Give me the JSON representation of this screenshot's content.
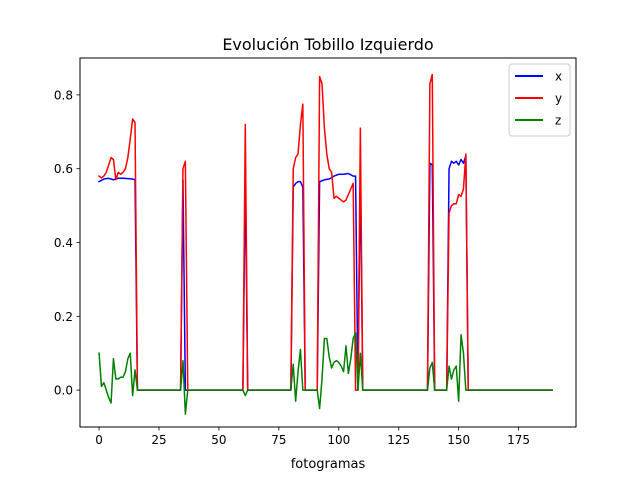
{
  "chart_data": {
    "type": "line",
    "title": "Evolución Tobillo Izquierdo",
    "xlabel": "fotogramas",
    "ylabel": "",
    "xlim": [
      -7.95,
      198.95
    ],
    "ylim": [
      -0.1,
      0.9
    ],
    "xticks": [
      0,
      25,
      50,
      75,
      100,
      125,
      150,
      175
    ],
    "yticks": [
      0.0,
      0.2,
      0.4,
      0.6,
      0.8
    ],
    "ytick_labels": [
      "0.0",
      "0.2",
      "0.4",
      "0.6",
      "0.8"
    ],
    "grid": false,
    "legend": {
      "position": "top-right",
      "entries": [
        "x",
        "y",
        "z"
      ]
    },
    "series": [
      {
        "name": "x",
        "color": "#0000ff",
        "points": [
          [
            0,
            0.565
          ],
          [
            2,
            0.572
          ],
          [
            4,
            0.574
          ],
          [
            6,
            0.57
          ],
          [
            8,
            0.574
          ],
          [
            10,
            0.574
          ],
          [
            12,
            0.573
          ],
          [
            14,
            0.572
          ],
          [
            15,
            0.57
          ],
          [
            16,
            0.0
          ],
          [
            34,
            0.0
          ],
          [
            35,
            0.57
          ],
          [
            36,
            0.0
          ],
          [
            60,
            0.0
          ],
          [
            61,
            0.58
          ],
          [
            62,
            0.0
          ],
          [
            80,
            0.0
          ],
          [
            81,
            0.55
          ],
          [
            82,
            0.56
          ],
          [
            83,
            0.565
          ],
          [
            84,
            0.565
          ],
          [
            85,
            0.55
          ],
          [
            86,
            0.0
          ],
          [
            91,
            0.0
          ],
          [
            92,
            0.565
          ],
          [
            94,
            0.57
          ],
          [
            96,
            0.572
          ],
          [
            98,
            0.58
          ],
          [
            100,
            0.585
          ],
          [
            102,
            0.585
          ],
          [
            104,
            0.587
          ],
          [
            106,
            0.58
          ],
          [
            107,
            0.58
          ],
          [
            108,
            0.0
          ],
          [
            109,
            0.59
          ],
          [
            110,
            0.0
          ],
          [
            137,
            0.0
          ],
          [
            138,
            0.615
          ],
          [
            139,
            0.61
          ],
          [
            140,
            0.0
          ],
          [
            145,
            0.0
          ],
          [
            146,
            0.6
          ],
          [
            147,
            0.62
          ],
          [
            148,
            0.615
          ],
          [
            149,
            0.62
          ],
          [
            150,
            0.61
          ],
          [
            151,
            0.625
          ],
          [
            152,
            0.615
          ],
          [
            153,
            0.635
          ],
          [
            154,
            0.0
          ],
          [
            189,
            0.0
          ]
        ]
      },
      {
        "name": "y",
        "color": "#ff0000",
        "points": [
          [
            0,
            0.58
          ],
          [
            1,
            0.575
          ],
          [
            2,
            0.58
          ],
          [
            3,
            0.59
          ],
          [
            4,
            0.61
          ],
          [
            5,
            0.63
          ],
          [
            6,
            0.625
          ],
          [
            7,
            0.57
          ],
          [
            8,
            0.59
          ],
          [
            9,
            0.585
          ],
          [
            10,
            0.59
          ],
          [
            11,
            0.6
          ],
          [
            12,
            0.63
          ],
          [
            13,
            0.68
          ],
          [
            14,
            0.735
          ],
          [
            15,
            0.725
          ],
          [
            16,
            0.0
          ],
          [
            34,
            0.0
          ],
          [
            35,
            0.6
          ],
          [
            36,
            0.62
          ],
          [
            37,
            0.0
          ],
          [
            60,
            0.0
          ],
          [
            61,
            0.72
          ],
          [
            62,
            0.0
          ],
          [
            80,
            0.0
          ],
          [
            81,
            0.6
          ],
          [
            82,
            0.63
          ],
          [
            83,
            0.64
          ],
          [
            84,
            0.72
          ],
          [
            85,
            0.775
          ],
          [
            86,
            0.0
          ],
          [
            91,
            0.0
          ],
          [
            92,
            0.85
          ],
          [
            93,
            0.83
          ],
          [
            94,
            0.71
          ],
          [
            95,
            0.64
          ],
          [
            96,
            0.6
          ],
          [
            97,
            0.59
          ],
          [
            98,
            0.52
          ],
          [
            99,
            0.525
          ],
          [
            100,
            0.52
          ],
          [
            101,
            0.515
          ],
          [
            102,
            0.51
          ],
          [
            103,
            0.515
          ],
          [
            104,
            0.53
          ],
          [
            105,
            0.545
          ],
          [
            106,
            0.56
          ],
          [
            107,
            0.0
          ],
          [
            108,
            0.0
          ],
          [
            109,
            0.71
          ],
          [
            110,
            0.0
          ],
          [
            137,
            0.0
          ],
          [
            138,
            0.83
          ],
          [
            139,
            0.855
          ],
          [
            140,
            0.0
          ],
          [
            145,
            0.0
          ],
          [
            146,
            0.48
          ],
          [
            147,
            0.5
          ],
          [
            148,
            0.505
          ],
          [
            149,
            0.505
          ],
          [
            150,
            0.53
          ],
          [
            151,
            0.525
          ],
          [
            152,
            0.545
          ],
          [
            153,
            0.64
          ],
          [
            154,
            0.0
          ],
          [
            189,
            0.0
          ]
        ]
      },
      {
        "name": "z",
        "color": "#008000",
        "points": [
          [
            0,
            0.1
          ],
          [
            1,
            0.01
          ],
          [
            2,
            0.02
          ],
          [
            3,
            0.0
          ],
          [
            4,
            -0.02
          ],
          [
            5,
            -0.035
          ],
          [
            6,
            0.085
          ],
          [
            7,
            0.03
          ],
          [
            8,
            0.03
          ],
          [
            9,
            0.035
          ],
          [
            10,
            0.035
          ],
          [
            11,
            0.05
          ],
          [
            12,
            0.085
          ],
          [
            13,
            0.1
          ],
          [
            14,
            -0.015
          ],
          [
            15,
            0.055
          ],
          [
            16,
            0.0
          ],
          [
            34,
            0.0
          ],
          [
            35,
            0.08
          ],
          [
            36,
            -0.065
          ],
          [
            37,
            0.0
          ],
          [
            60,
            0.0
          ],
          [
            61,
            -0.015
          ],
          [
            62,
            0.0
          ],
          [
            80,
            0.0
          ],
          [
            81,
            0.07
          ],
          [
            82,
            -0.03
          ],
          [
            83,
            0.05
          ],
          [
            84,
            0.11
          ],
          [
            85,
            0.0
          ],
          [
            91,
            0.0
          ],
          [
            92,
            -0.05
          ],
          [
            93,
            0.03
          ],
          [
            94,
            0.14
          ],
          [
            95,
            0.14
          ],
          [
            96,
            0.09
          ],
          [
            97,
            0.06
          ],
          [
            98,
            0.075
          ],
          [
            99,
            0.08
          ],
          [
            100,
            0.075
          ],
          [
            101,
            0.065
          ],
          [
            102,
            0.05
          ],
          [
            103,
            0.12
          ],
          [
            104,
            0.045
          ],
          [
            105,
            0.085
          ],
          [
            106,
            0.14
          ],
          [
            107,
            0.155
          ],
          [
            108,
            0.0
          ],
          [
            109,
            0.1
          ],
          [
            110,
            0.0
          ],
          [
            137,
            0.0
          ],
          [
            138,
            0.06
          ],
          [
            139,
            0.075
          ],
          [
            140,
            0.0
          ],
          [
            145,
            0.0
          ],
          [
            146,
            0.065
          ],
          [
            147,
            0.03
          ],
          [
            148,
            0.055
          ],
          [
            149,
            0.065
          ],
          [
            150,
            -0.03
          ],
          [
            151,
            0.15
          ],
          [
            152,
            0.1
          ],
          [
            153,
            0.0
          ],
          [
            189,
            0.0
          ]
        ]
      }
    ]
  }
}
